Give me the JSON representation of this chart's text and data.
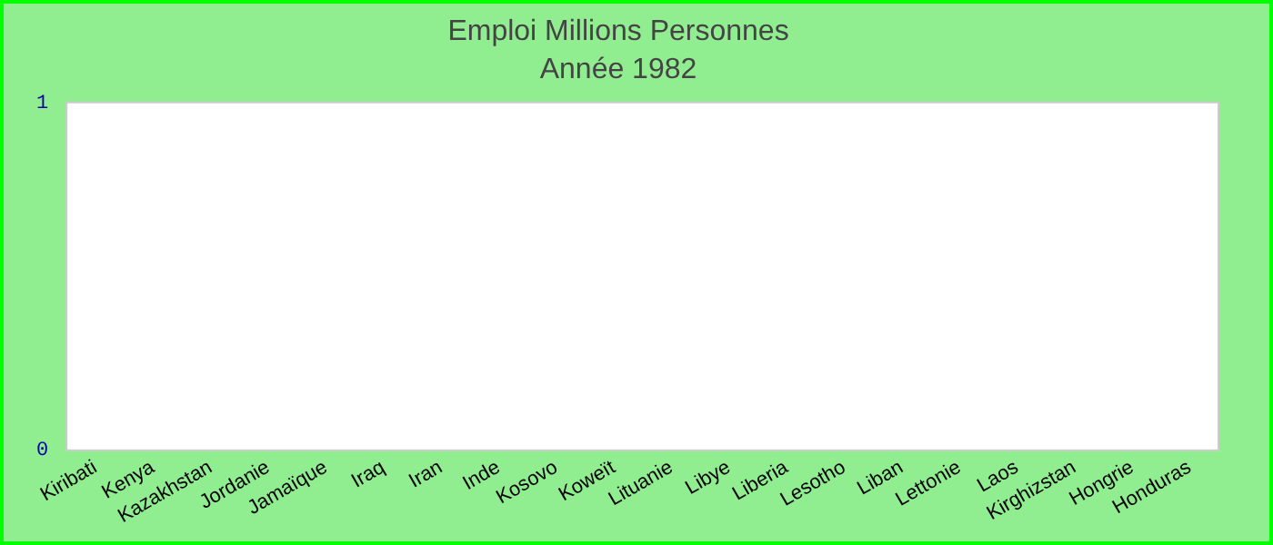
{
  "chart_data": {
    "type": "bar",
    "title": "Emploi Millions Personnes",
    "subtitle": "Année 1982",
    "categories": [
      "Kiribati",
      "Kenya",
      "Kazakhstan",
      "Jordanie",
      "Jamaïque",
      "Iraq",
      "Iran",
      "Inde",
      "Kosovo",
      "Koweït",
      "Lituanie",
      "Libye",
      "Liberia",
      "Lesotho",
      "Liban",
      "Lettonie",
      "Laos",
      "Kirghizstan",
      "Hongrie",
      "Honduras"
    ],
    "values": [
      null,
      null,
      null,
      null,
      null,
      null,
      null,
      null,
      null,
      null,
      null,
      null,
      null,
      null,
      null,
      null,
      null,
      null,
      null,
      null
    ],
    "ylim": [
      0,
      1
    ],
    "yticks": [
      0,
      1
    ],
    "grid": false,
    "legend": false
  }
}
